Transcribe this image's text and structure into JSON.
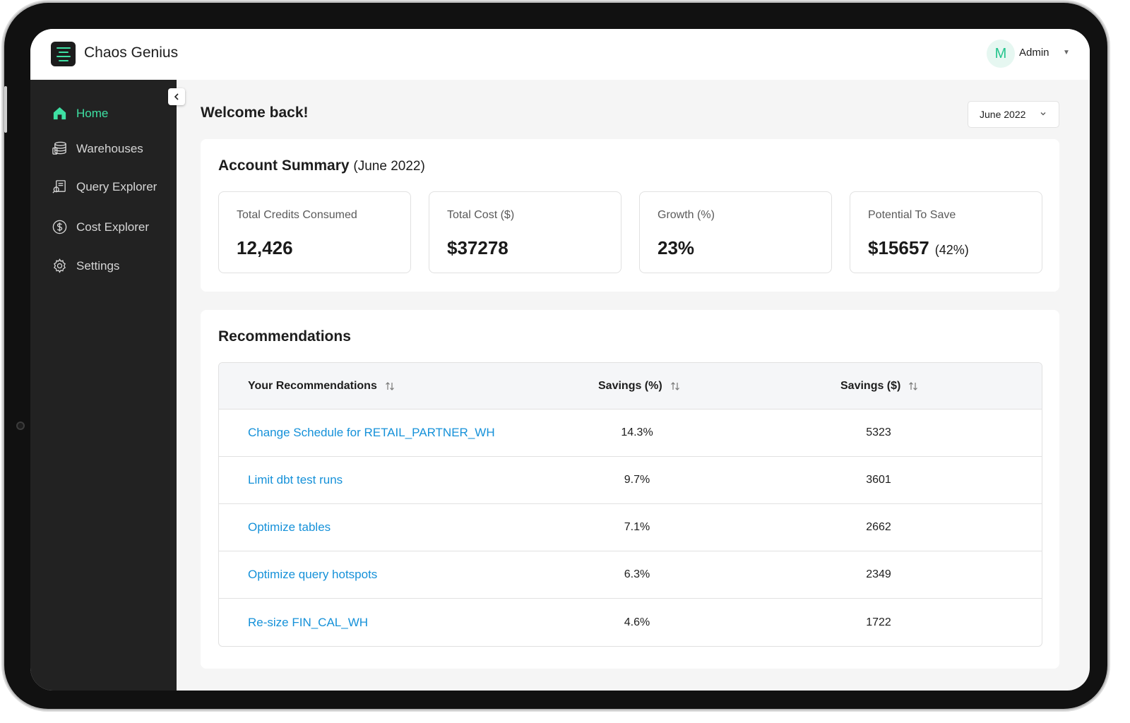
{
  "app": {
    "title": "Chaos Genius"
  },
  "user": {
    "initial": "M",
    "name": "Admin"
  },
  "sidebar": {
    "items": [
      {
        "label": "Home",
        "icon": "home-icon",
        "active": true
      },
      {
        "label": "Warehouses",
        "icon": "warehouse-icon",
        "active": false
      },
      {
        "label": "Query Explorer",
        "icon": "query-icon",
        "active": false
      },
      {
        "label": "Cost Explorer",
        "icon": "dollar-icon",
        "active": false
      },
      {
        "label": "Settings",
        "icon": "gear-icon",
        "active": false
      }
    ]
  },
  "main": {
    "welcome": "Welcome back!",
    "month_select": "June 2022"
  },
  "summary": {
    "title": "Account Summary",
    "period": "(June 2022)",
    "stats": [
      {
        "label": "Total Credits Consumed",
        "value": "12,426"
      },
      {
        "label": "Total Cost ($)",
        "value": "$37278"
      },
      {
        "label": "Growth (%)",
        "value": "23%"
      },
      {
        "label": "Potential To Save",
        "value": "$15657",
        "extra": "(42%)"
      }
    ]
  },
  "recommendations": {
    "title": "Recommendations",
    "columns": [
      "Your Recommendations",
      "Savings (%)",
      "Savings ($)"
    ],
    "rows": [
      {
        "name": "Change Schedule for RETAIL_PARTNER_WH",
        "pct": "14.3%",
        "usd": "5323"
      },
      {
        "name": "Limit dbt test runs",
        "pct": "9.7%",
        "usd": "3601"
      },
      {
        "name": "Optimize tables",
        "pct": "7.1%",
        "usd": "2662"
      },
      {
        "name": "Optimize query hotspots",
        "pct": "6.3%",
        "usd": "2349"
      },
      {
        "name": "Re-size FIN_CAL_WH",
        "pct": "4.6%",
        "usd": "1722"
      }
    ]
  },
  "colors": {
    "accent": "#3ee0a3",
    "link": "#1591d9",
    "sidebar_bg": "#222222",
    "page_bg": "#f5f5f5"
  }
}
